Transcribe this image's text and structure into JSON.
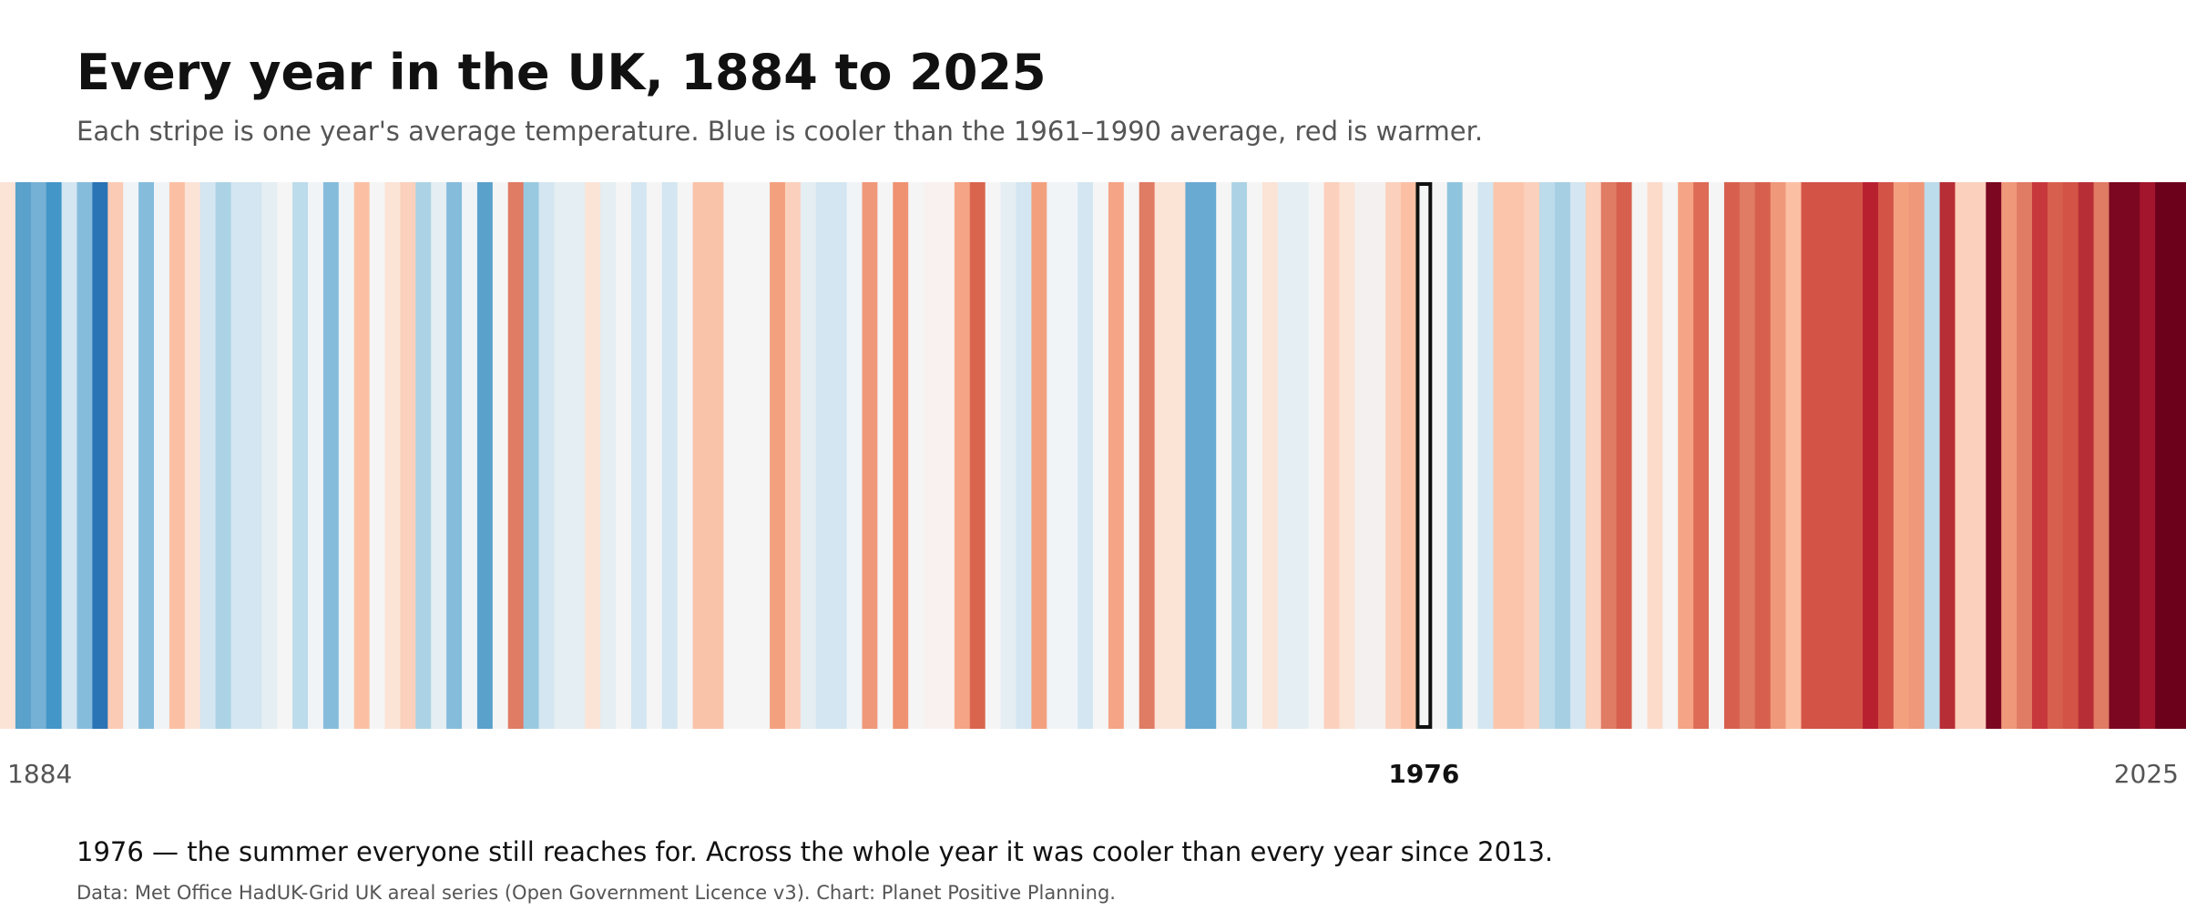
{
  "title": "Every year in the UK, 1884 to 2025",
  "subtitle": "Each stripe is one year's average temperature. Blue is cooler than the 1961–1990 average, red is warmer.",
  "caption": "1976 — the summer everyone still reaches for. Across the whole year it was cooler than every year since 2013.",
  "source": "Data: Met Office HadUK-Grid UK areal series (Open Government Licence v3).  Chart: Planet Positive Planning.",
  "chart_data": {
    "type": "heatmap",
    "title": "Every year in the UK, 1884 to 2025",
    "x_start": 1884,
    "x_end": 2025,
    "highlight_year": 1976,
    "tick_labels": [
      "1884",
      "1976",
      "2025"
    ],
    "colors": [
      "#fbe3d6",
      "#5aa1cb",
      "#74b1d5",
      "#4396c8",
      "#d3e6f1",
      "#85bcdc",
      "#2a73b4",
      "#fbcbb5",
      "#f0f4f7",
      "#85bcdc",
      "#f0f4f7",
      "#fbc0a4",
      "#fbe3d6",
      "#d3e6f1",
      "#abd3e5",
      "#d3e6f1",
      "#d3e6f1",
      "#e5eef3",
      "#f5f5f5",
      "#bcdbeb",
      "#f0f4f7",
      "#85bcdc",
      "#f0f4f7",
      "#fbc0a4",
      "#f5f5f5",
      "#fbe3d6",
      "#fbd0bc",
      "#abd3e5",
      "#e5eef3",
      "#85bcdc",
      "#f0f4f7",
      "#5aa1cb",
      "#f5f5f5",
      "#e07b64",
      "#99c9e0",
      "#d3e6f1",
      "#e5eef3",
      "#e5eef3",
      "#fbe3d6",
      "#e5eef3",
      "#f5f5f5",
      "#d3e6f1",
      "#f5f5f5",
      "#d3e6f1",
      "#f5f5f5",
      "#f9c3a9",
      "#f9c3a9",
      "#f5f5f5",
      "#f5f5f5",
      "#f5f5f5",
      "#f3a07f",
      "#fbd0bc",
      "#e5eef3",
      "#d3e6f1",
      "#d3e6f1",
      "#f0f4f7",
      "#f0987a",
      "#f5f5f5",
      "#ee9272",
      "#f5f5f5",
      "#f8f1ef",
      "#f8f1ef",
      "#f5a485",
      "#d9654f",
      "#f5f5f5",
      "#e5eef3",
      "#d3e6f1",
      "#f3a07f",
      "#f0f4f7",
      "#f0f4f7",
      "#d3e6f1",
      "#f5f5f5",
      "#f5a485",
      "#f5f5f5",
      "#e07b64",
      "#fbe3d6",
      "#fbe3d6",
      "#68aad2",
      "#68aad2",
      "#f5f5f5",
      "#abd3e5",
      "#f5f5f5",
      "#fbe3d6",
      "#e5eef3",
      "#e5eef3",
      "#f5f5f5",
      "#fbd0bc",
      "#fbe3d6",
      "#f5f0f0",
      "#f5f0f0",
      "#fbd0bc",
      "#fbc0a4",
      "#f5f5f5",
      "#f5f5f5",
      "#8fc4de",
      "#f5f5f5",
      "#d3e6f1",
      "#fbc5ab",
      "#fbc5ab",
      "#fbd0bc",
      "#bcdbeb",
      "#a6cfe3",
      "#d3e6f1",
      "#fbd0bc",
      "#e07b64",
      "#d6604d",
      "#f5f5f5",
      "#fcdbcb",
      "#f5f5f5",
      "#f5a485",
      "#dd6b55",
      "#f5f5f5",
      "#d6604d",
      "#e07b64",
      "#d6604d",
      "#f0987a",
      "#fbc0a4",
      "#d35447",
      "#d35447",
      "#d35447",
      "#d35447",
      "#b82030",
      "#d35447",
      "#f3a07f",
      "#f0987a",
      "#bcdbeb",
      "#b82e36",
      "#fbd0bc",
      "#fbd0bc",
      "#7b0820",
      "#f0987a",
      "#e07b64",
      "#c6383c",
      "#d6604d",
      "#d35447",
      "#b82e36",
      "#e07b64",
      "#7b0820",
      "#7b0820",
      "#a3152c",
      "#6c011c",
      "#6c011c"
    ]
  }
}
